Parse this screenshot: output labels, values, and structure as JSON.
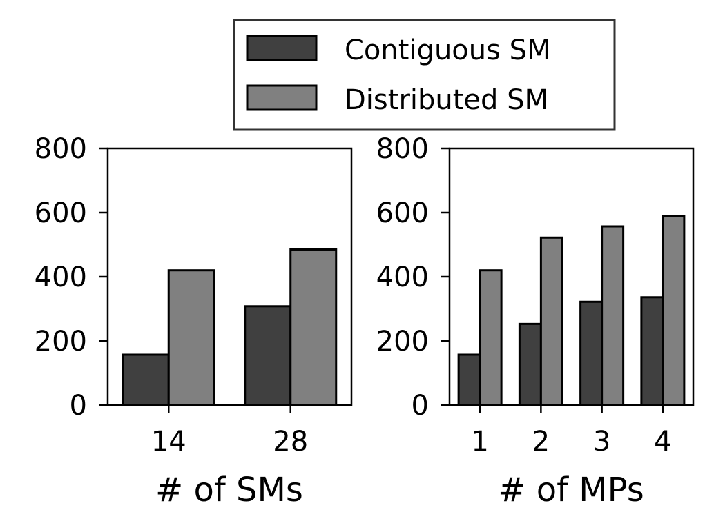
{
  "colors": {
    "contiguous": "#404040",
    "distributed": "#808080",
    "legend_border": "#333333"
  },
  "legend": {
    "placement": "top-center",
    "items": [
      {
        "label": "Contiguous SM",
        "color_key": "contiguous"
      },
      {
        "label": "Distributed SM",
        "color_key": "distributed"
      }
    ]
  },
  "chart_data": [
    {
      "type": "bar",
      "xlabel": "# of SMs",
      "ylabel": "",
      "ylim": [
        0,
        800
      ],
      "yticks": [
        "0",
        "200",
        "400",
        "600",
        "800"
      ],
      "categories": [
        "14",
        "28"
      ],
      "series": [
        {
          "name": "Contiguous SM",
          "values": [
            157,
            308
          ]
        },
        {
          "name": "Distributed SM",
          "values": [
            420,
            485
          ]
        }
      ],
      "grid": false
    },
    {
      "type": "bar",
      "xlabel": "# of MPs",
      "ylabel": "",
      "ylim": [
        0,
        800
      ],
      "yticks": [
        "0",
        "200",
        "400",
        "600",
        "800"
      ],
      "categories": [
        "1",
        "2",
        "3",
        "4"
      ],
      "series": [
        {
          "name": "Contiguous SM",
          "values": [
            157,
            253,
            322,
            336
          ]
        },
        {
          "name": "Distributed SM",
          "values": [
            420,
            522,
            557,
            590
          ]
        }
      ],
      "grid": false
    }
  ]
}
